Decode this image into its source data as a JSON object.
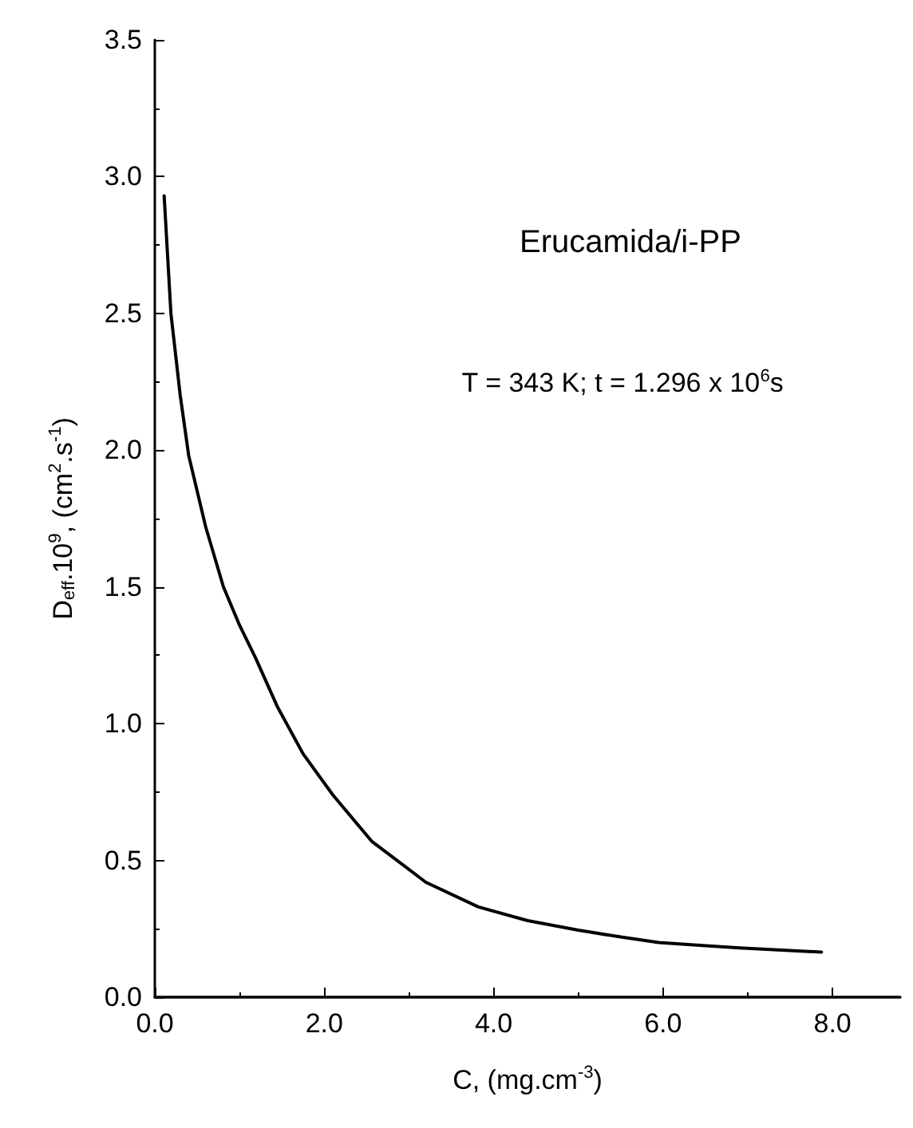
{
  "chart_data": {
    "type": "line",
    "xlabel": "C, (mg.cm$^{-3}$)",
    "ylabel": "D$_{eff}$.10$^{9}$, (cm$^{2}$.s$^{-1}$)",
    "annotations": [
      "Erucamida/i-PP",
      "T = 343 K; t = 1.296 x 10$^{6}$s"
    ],
    "x": [
      0.11,
      0.19,
      0.3,
      0.4,
      0.6,
      0.81,
      1.0,
      1.19,
      1.45,
      1.75,
      2.1,
      2.56,
      3.2,
      3.82,
      4.4,
      5.0,
      5.5,
      5.95,
      6.4,
      6.9,
      7.4,
      7.87
    ],
    "series": [
      {
        "color": "#000000",
        "values": [
          2.93,
          2.5,
          2.2,
          1.98,
          1.72,
          1.5,
          1.36,
          1.24,
          1.06,
          0.89,
          0.74,
          0.57,
          0.42,
          0.33,
          0.28,
          0.245,
          0.22,
          0.2,
          0.19,
          0.18,
          0.172,
          0.165
        ]
      }
    ],
    "xlim": [
      0,
      8.8
    ],
    "ylim": [
      0,
      3.5
    ],
    "xticks": [
      {
        "value": 0,
        "label": "0.0"
      },
      {
        "value": 2,
        "label": "2.0"
      },
      {
        "value": 4,
        "label": "4.0"
      },
      {
        "value": 6,
        "label": "6.0"
      },
      {
        "value": 8,
        "label": "8.0"
      }
    ],
    "yticks": [
      {
        "value": 0,
        "label": "0.0"
      },
      {
        "value": 0.5,
        "label": "0.5"
      },
      {
        "value": 1,
        "label": "1.0"
      },
      {
        "value": 1.5,
        "label": "1.5"
      },
      {
        "value": 2,
        "label": "2.0"
      },
      {
        "value": 2.5,
        "label": "2.5"
      },
      {
        "value": 3,
        "label": "3.0"
      },
      {
        "value": 3.5,
        "label": "3.5"
      }
    ],
    "grid": false,
    "marker": "none",
    "line_style": "solid"
  }
}
